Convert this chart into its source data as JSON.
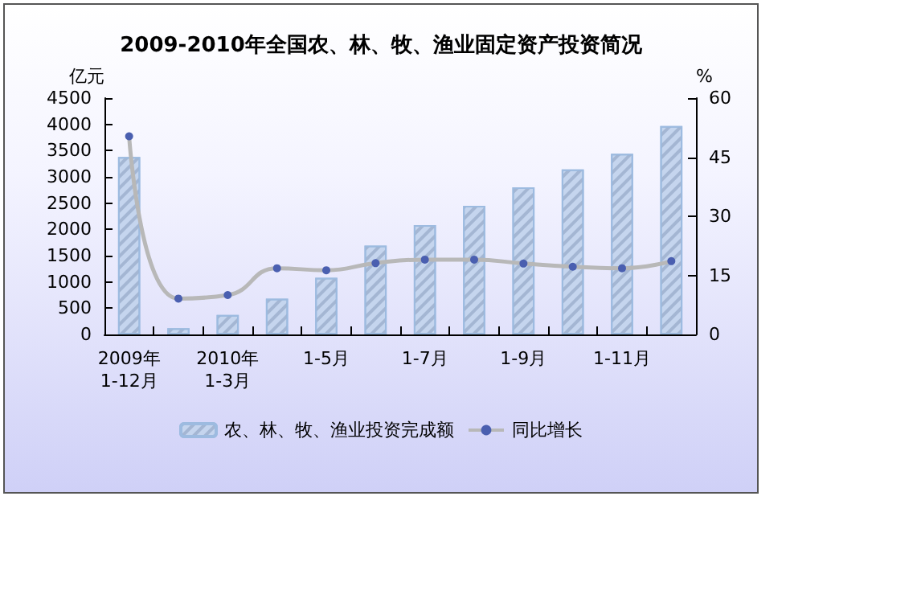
{
  "chart_data": {
    "type": "bar",
    "title": "2009-2010年全国农、林、牧、渔业固定资产投资简况",
    "categories": [
      "2009年\n1-12月",
      null,
      "2010年\n1-3月",
      null,
      "1-5月",
      null,
      "1-7月",
      null,
      "1-9月",
      null,
      "1-11月",
      null
    ],
    "series": [
      {
        "name": "农、林、牧、渔业投资完成额",
        "color": "#c5d5ee",
        "values": [
          3380,
          120,
          370,
          680,
          1080,
          1690,
          2080,
          2450,
          2800,
          3140,
          3440,
          3970
        ]
      },
      {
        "name": "同比增长",
        "type": "line",
        "axis": "y2",
        "color": "#4a5fb0",
        "values": [
          50.3,
          9.1,
          10.0,
          16.8,
          16.3,
          18.1,
          19.0,
          19.0,
          18.0,
          17.2,
          16.8,
          18.6
        ]
      }
    ],
    "ylabel": "亿元",
    "y2label": "%",
    "ylim": [
      0,
      4500
    ],
    "yticks": [
      0,
      500,
      1000,
      1500,
      2000,
      2500,
      3000,
      3500,
      4000,
      4500
    ],
    "y2lim": [
      0,
      60
    ],
    "y2ticks": [
      0,
      15,
      30,
      45,
      60
    ],
    "legend": "bottom",
    "grid": false,
    "marker": "circle"
  }
}
